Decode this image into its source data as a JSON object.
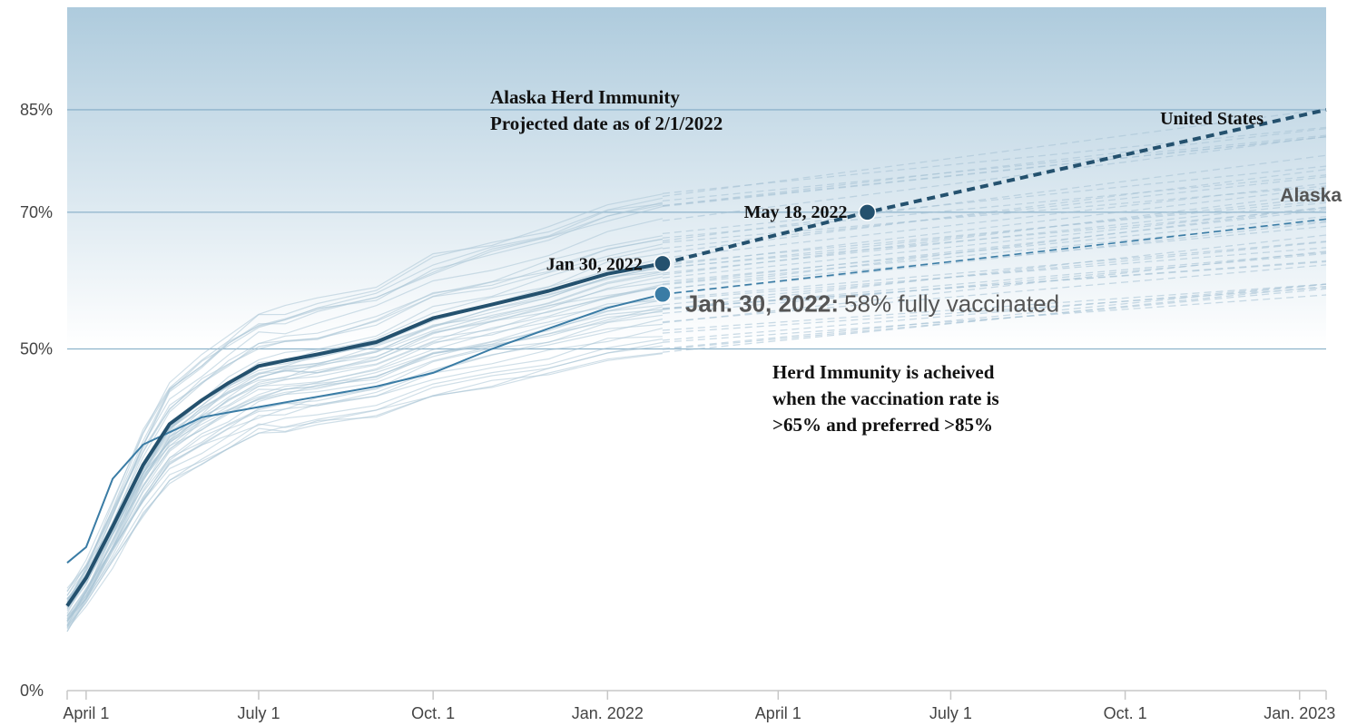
{
  "chart_data": {
    "type": "line",
    "title": "",
    "xlabel": "",
    "ylabel": "",
    "ylim": [
      0,
      100
    ],
    "y_ticks": [
      "0%",
      "50%",
      "70%",
      "85%"
    ],
    "x_ticks": [
      "April 1",
      "July 1",
      "Oct. 1",
      "Jan. 2022",
      "April 1",
      "July 1",
      "Oct. 1",
      "Jan. 2023"
    ],
    "x_range": [
      "2021-03-22",
      "2023-01-15"
    ],
    "grid": {
      "horizontal": [
        50,
        70,
        85
      ]
    },
    "colors": {
      "united_states": "#24516e",
      "alaska": "#3a7ca5",
      "states": "#a9c4d6",
      "gridline": "#8db3cb",
      "bg_top": "#aecbdd"
    },
    "series": [
      {
        "name": "United States",
        "observed": [
          [
            "2021-03-22",
            12.4
          ],
          [
            "2021-04-01",
            16.5
          ],
          [
            "2021-04-15",
            24
          ],
          [
            "2021-05-01",
            33
          ],
          [
            "2021-05-15",
            39
          ],
          [
            "2021-06-01",
            42.5
          ],
          [
            "2021-06-15",
            45
          ],
          [
            "2021-07-01",
            47.5
          ],
          [
            "2021-07-15",
            48.3
          ],
          [
            "2021-08-01",
            49.2
          ],
          [
            "2021-09-01",
            51
          ],
          [
            "2021-10-01",
            54.5
          ],
          [
            "2021-11-01",
            56.5
          ],
          [
            "2021-12-01",
            58.5
          ],
          [
            "2022-01-01",
            61
          ],
          [
            "2022-01-30",
            62.5
          ]
        ],
        "projected": [
          [
            "2022-01-30",
            62.5
          ],
          [
            "2022-05-18",
            70
          ],
          [
            "2023-01-15",
            85
          ]
        ]
      },
      {
        "name": "Alaska",
        "observed": [
          [
            "2021-03-22",
            18.7
          ],
          [
            "2021-04-01",
            21
          ],
          [
            "2021-04-15",
            31
          ],
          [
            "2021-05-01",
            36
          ],
          [
            "2021-06-01",
            40
          ],
          [
            "2021-07-01",
            41.5
          ],
          [
            "2021-08-01",
            43
          ],
          [
            "2021-09-01",
            44.5
          ],
          [
            "2021-10-01",
            46.5
          ],
          [
            "2021-11-01",
            50
          ],
          [
            "2021-12-01",
            53
          ],
          [
            "2022-01-01",
            56
          ],
          [
            "2022-01-30",
            58
          ]
        ],
        "projected": [
          [
            "2022-01-30",
            58
          ],
          [
            "2023-01-15",
            69
          ]
        ]
      }
    ],
    "markers": [
      {
        "series": "United States",
        "date": "2022-01-30",
        "value": 62.5,
        "label": "Jan 30, 2022"
      },
      {
        "series": "United States",
        "date": "2022-05-18",
        "value": 70,
        "label": "May 18, 2022"
      },
      {
        "series": "Alaska",
        "date": "2022-01-30",
        "value": 58,
        "label_bold": "Jan. 30, 2022:",
        "label_rest": "58% fully vaccinated"
      }
    ],
    "series_labels": {
      "united_states": "United States",
      "alaska": "Alaska"
    },
    "annotations": {
      "alaska_herd_title": "Alaska Herd Immunity",
      "alaska_herd_subtitle": "Projected date as of 2/1/2022",
      "herd_note": [
        "Herd Immunity is acheived",
        "when the vaccination rate is",
        ">65% and preferred >85%"
      ]
    }
  }
}
